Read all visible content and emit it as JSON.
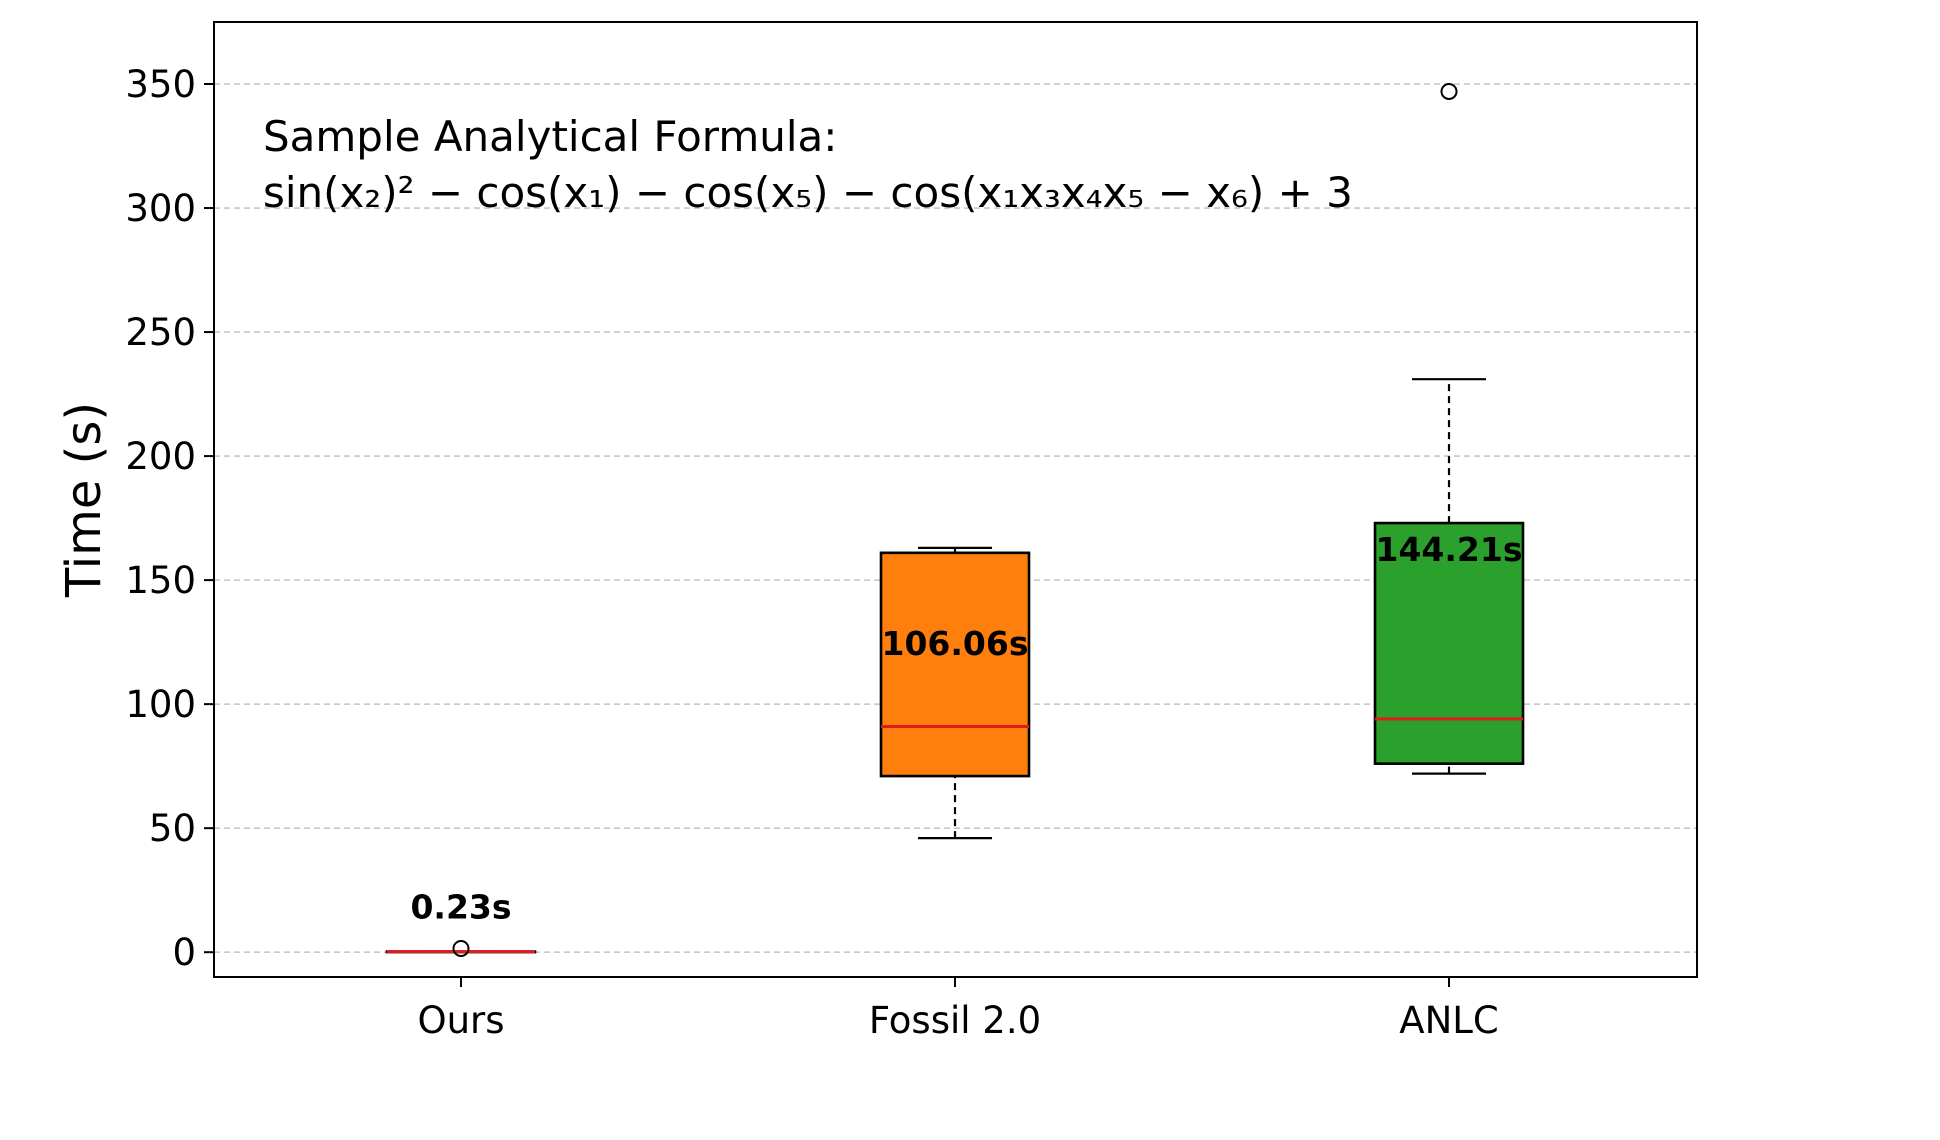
{
  "chart_data": {
    "type": "box",
    "ylabel": "Time (s)",
    "ylim": [
      -10,
      375
    ],
    "yticks": [
      0,
      50,
      100,
      150,
      200,
      250,
      300,
      350
    ],
    "grid": "y-dashed",
    "annotation": {
      "line1": "Sample Analytical Formula:",
      "line2": "sin(x₂)² − cos(x₁) − cos(x₅) − cos(x₁x₃x₄x₅ − x₆) + 3"
    },
    "boxes": [
      {
        "category": "Ours",
        "color": "#1f77b4",
        "whisker_low": 0.2,
        "q1": 0.2,
        "median": 0.23,
        "q3": 0.25,
        "whisker_high": 0.3,
        "fliers": [
          1.5
        ],
        "mean_label": "0.23s"
      },
      {
        "category": "Fossil 2.0",
        "color": "#ff7f0e",
        "whisker_low": 46,
        "q1": 71,
        "median": 91,
        "q3": 161,
        "whisker_high": 163,
        "fliers": [],
        "mean_label": "106.06s"
      },
      {
        "category": "ANLC",
        "color": "#2ca02c",
        "whisker_low": 72,
        "q1": 76,
        "median": 94,
        "q3": 173,
        "whisker_high": 231,
        "fliers": [
          347
        ],
        "mean_label": "144.21s"
      }
    ],
    "median_color": "#e31a1c"
  }
}
